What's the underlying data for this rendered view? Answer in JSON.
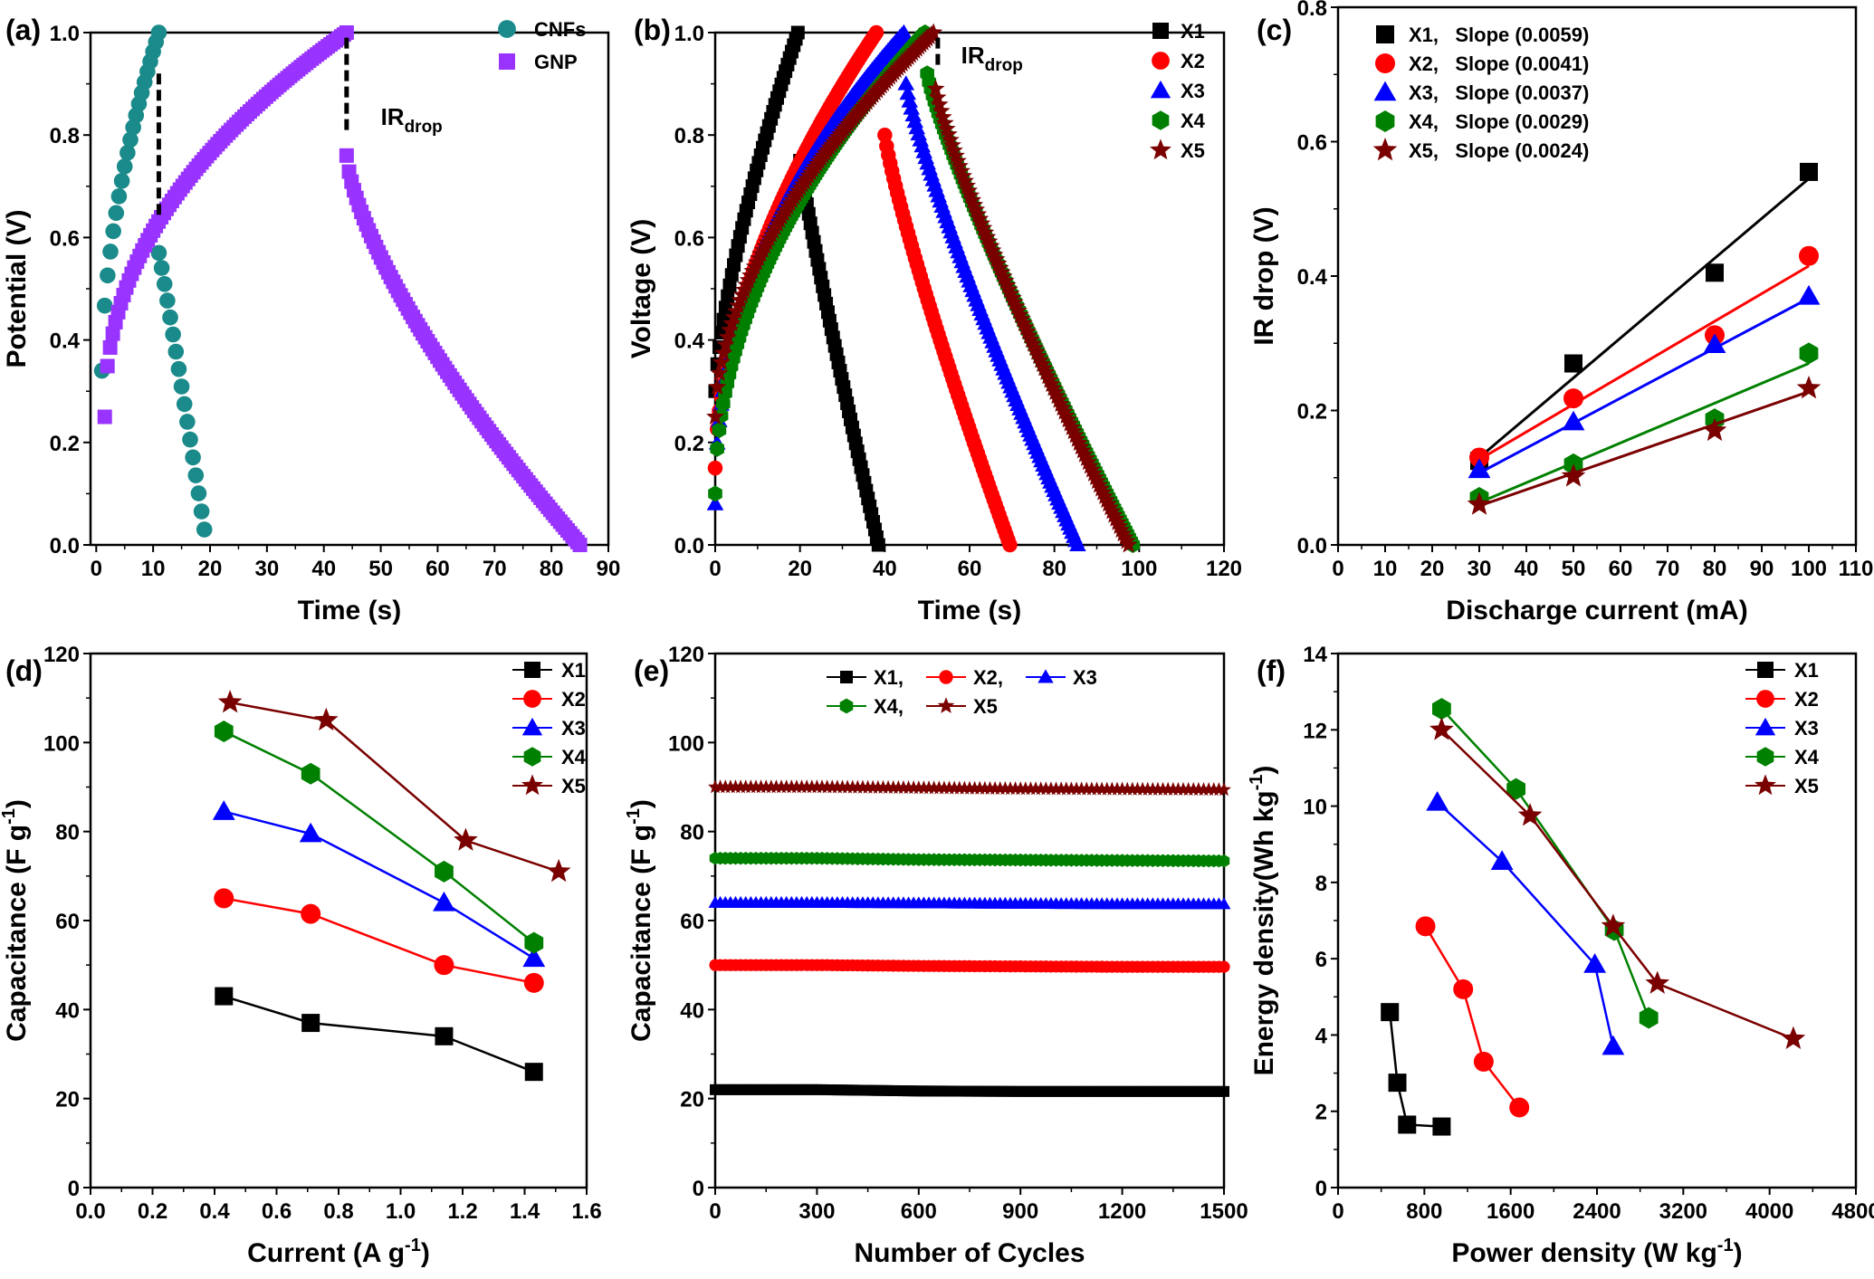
{
  "colors": {
    "teal": "#1a8a8a",
    "purple": "#9933ff",
    "black": "#000000",
    "red": "#ff0000",
    "blue": "#0000ff",
    "green": "#008000",
    "darkred": "#7a0000"
  },
  "chart_data": [
    {
      "id": "a",
      "type": "scatter",
      "panel_label": "(a)",
      "xlabel": "Time (s)",
      "ylabel": "Potential (V)",
      "xlim": [
        -1,
        90
      ],
      "ylim": [
        0,
        1.0
      ],
      "xticks": [
        0,
        10,
        20,
        30,
        40,
        50,
        60,
        70,
        80,
        90
      ],
      "yticks": [
        0.0,
        0.2,
        0.4,
        0.6,
        0.8,
        1.0
      ],
      "xtick_labels": [
        "0",
        "10",
        "20",
        "30",
        "40",
        "50",
        "60",
        "70",
        "80",
        "90"
      ],
      "ytick_labels": [
        "0.0",
        "0.2",
        "0.4",
        "0.6",
        "0.8",
        "1.0"
      ],
      "legend": "top-right",
      "annotations": [
        {
          "text": "IR",
          "sub": "drop"
        }
      ],
      "series": [
        {
          "name": "CNFs",
          "color": "teal",
          "marker": "circle",
          "charge": {
            "x0": 1,
            "x1": 11,
            "y0": 0.34,
            "y1": 1.0,
            "n": 20,
            "curve": 0.55
          },
          "jump": [
            11,
            0.57
          ],
          "discharge": {
            "x0": 11,
            "x1": 19,
            "y0": 0.57,
            "y1": 0.03,
            "n": 16,
            "curve": 1.05
          }
        },
        {
          "name": "GNP",
          "color": "purple",
          "marker": "square",
          "charge": {
            "x0": 1.5,
            "x1": 44,
            "y0": 0.25,
            "y1": 1.0,
            "n": 90,
            "curve": 0.45
          },
          "jump": [
            44,
            0.76
          ],
          "discharge": {
            "x0": 44,
            "x1": 85,
            "y0": 0.76,
            "y1": 0.0,
            "n": 95,
            "curve": 0.7
          }
        }
      ]
    },
    {
      "id": "b",
      "type": "scatter",
      "panel_label": "(b)",
      "xlabel": "Time (s)",
      "ylabel": "Voltage (V)",
      "xlim": [
        0,
        120
      ],
      "ylim": [
        0,
        1.0
      ],
      "xticks": [
        0,
        20,
        40,
        60,
        80,
        100,
        120
      ],
      "yticks": [
        0.0,
        0.2,
        0.4,
        0.6,
        0.8,
        1.0
      ],
      "xtick_labels": [
        "0",
        "20",
        "40",
        "60",
        "80",
        "100",
        "120"
      ],
      "ytick_labels": [
        "0.0",
        "0.2",
        "0.4",
        "0.6",
        "0.8",
        "1.0"
      ],
      "legend": "top-right",
      "annotations": [
        {
          "text": "IR",
          "sub": "drop"
        }
      ],
      "series": [
        {
          "name": "X1",
          "color": "black",
          "marker": "square",
          "charge": {
            "x0": 0,
            "x1": 19.5,
            "y0": 0.3,
            "y1": 1.0,
            "n": 40,
            "curve": 0.7
          },
          "jump": [
            20,
            0.79
          ],
          "discharge": {
            "x0": 20,
            "x1": 38.5,
            "y0": 0.75,
            "y1": 0.0,
            "n": 45,
            "curve": 0.9
          }
        },
        {
          "name": "X2",
          "color": "red",
          "marker": "circle",
          "charge": {
            "x0": 0,
            "x1": 38,
            "y0": 0.15,
            "y1": 1.0,
            "n": 80,
            "curve": 0.55
          },
          "jump": [
            40,
            0.8
          ],
          "discharge": {
            "x0": 40,
            "x1": 69.5,
            "y0": 0.8,
            "y1": 0.0,
            "n": 70,
            "curve": 0.85
          }
        },
        {
          "name": "X3",
          "color": "blue",
          "marker": "triangle",
          "charge": {
            "x0": 0,
            "x1": 44.5,
            "y0": 0.08,
            "y1": 1.0,
            "n": 95,
            "curve": 0.45
          },
          "jump": [
            45,
            0.9
          ],
          "discharge": {
            "x0": 45,
            "x1": 85.5,
            "y0": 0.9,
            "y1": 0.0,
            "n": 95,
            "curve": 0.85
          }
        },
        {
          "name": "X4",
          "color": "green",
          "marker": "hexagon",
          "charge": {
            "x0": 0,
            "x1": 49.5,
            "y0": 0.1,
            "y1": 1.0,
            "n": 105,
            "curve": 0.5
          },
          "jump": [
            50,
            0.92
          ],
          "discharge": {
            "x0": 50,
            "x1": 98.5,
            "y0": 0.92,
            "y1": 0.0,
            "n": 110,
            "curve": 0.85
          }
        },
        {
          "name": "X5",
          "color": "darkred",
          "marker": "star",
          "charge": {
            "x0": 0,
            "x1": 51.5,
            "y0": 0.25,
            "y1": 1.0,
            "n": 105,
            "curve": 0.55
          },
          "jump": [
            52,
            0.89
          ],
          "discharge": {
            "x0": 52,
            "x1": 97.5,
            "y0": 0.89,
            "y1": 0.0,
            "n": 105,
            "curve": 0.85
          }
        }
      ]
    },
    {
      "id": "c",
      "type": "scatter",
      "panel_label": "(c)",
      "xlabel": "Discharge current (mA)",
      "ylabel": "IR drop (V)",
      "xlim": [
        0,
        110
      ],
      "ylim": [
        0,
        0.8
      ],
      "xticks": [
        0,
        10,
        20,
        30,
        40,
        50,
        60,
        70,
        80,
        90,
        100,
        110
      ],
      "yticks": [
        0.0,
        0.2,
        0.4,
        0.6,
        0.8
      ],
      "xtick_labels": [
        "0",
        "10",
        "20",
        "30",
        "40",
        "50",
        "60",
        "70",
        "80",
        "90",
        "100",
        "110"
      ],
      "ytick_labels": [
        "0.0",
        "0.2",
        "0.4",
        "0.6",
        "0.8"
      ],
      "legend": "top-left",
      "series": [
        {
          "name": "X1,   Slope (0.0059)",
          "color": "black",
          "marker": "square",
          "x": [
            30,
            50,
            80,
            100
          ],
          "y": [
            0.125,
            0.27,
            0.405,
            0.555
          ],
          "fit": [
            [
              30,
              0.13
            ],
            [
              100,
              0.545
            ]
          ]
        },
        {
          "name": "X2,   Slope (0.0041)",
          "color": "red",
          "marker": "circle",
          "x": [
            30,
            50,
            80,
            100
          ],
          "y": [
            0.13,
            0.218,
            0.312,
            0.43
          ],
          "fit": [
            [
              30,
              0.127
            ],
            [
              100,
              0.415
            ]
          ]
        },
        {
          "name": "X3,   Slope (0.0037)",
          "color": "blue",
          "marker": "triangle",
          "x": [
            30,
            50,
            80,
            100
          ],
          "y": [
            0.112,
            0.183,
            0.298,
            0.37
          ],
          "fit": [
            [
              30,
              0.107
            ],
            [
              100,
              0.367
            ]
          ]
        },
        {
          "name": "X4,   Slope (0.0029)",
          "color": "green",
          "marker": "hexagon",
          "x": [
            30,
            50,
            80,
            100
          ],
          "y": [
            0.07,
            0.12,
            0.187,
            0.285
          ],
          "fit": [
            [
              30,
              0.063
            ],
            [
              100,
              0.27
            ]
          ]
        },
        {
          "name": "X5,   Slope (0.0024)",
          "color": "darkred",
          "marker": "star",
          "x": [
            30,
            50,
            80,
            100
          ],
          "y": [
            0.06,
            0.102,
            0.17,
            0.233
          ],
          "fit": [
            [
              30,
              0.058
            ],
            [
              100,
              0.228
            ]
          ]
        }
      ]
    },
    {
      "id": "d",
      "type": "line",
      "panel_label": "(d)",
      "xlabel": "Current (A g",
      "xlabel_sup": "-1",
      "xlabel_end": ")",
      "ylabel": "Capacitance (F g",
      "ylabel_sup": "-1",
      "ylabel_end": ")",
      "xlim": [
        0,
        1.6
      ],
      "ylim": [
        0,
        120
      ],
      "xticks": [
        0,
        0.2,
        0.4,
        0.6,
        0.8,
        1.0,
        1.2,
        1.4,
        1.6
      ],
      "yticks": [
        0,
        20,
        40,
        60,
        80,
        100,
        120
      ],
      "xtick_labels": [
        "0.0",
        "0.2",
        "0.4",
        "0.6",
        "0.8",
        "1.0",
        "1.2",
        "1.4",
        "1.6"
      ],
      "ytick_labels": [
        "0",
        "20",
        "40",
        "60",
        "80",
        "100",
        "120"
      ],
      "legend": "top-right",
      "series": [
        {
          "name": "X1",
          "color": "black",
          "marker": "square",
          "x": [
            0.43,
            0.71,
            1.14,
            1.43
          ],
          "y": [
            43,
            37,
            34,
            26
          ]
        },
        {
          "name": "X2",
          "color": "red",
          "marker": "circle",
          "x": [
            0.43,
            0.71,
            1.14,
            1.43
          ],
          "y": [
            65,
            61.5,
            50,
            46
          ]
        },
        {
          "name": "X3",
          "color": "blue",
          "marker": "triangle",
          "x": [
            0.43,
            0.71,
            1.14,
            1.43
          ],
          "y": [
            84.5,
            79.5,
            64,
            51.5
          ]
        },
        {
          "name": "X4",
          "color": "green",
          "marker": "hexagon",
          "x": [
            0.43,
            0.71,
            1.14,
            1.43
          ],
          "y": [
            102.5,
            93,
            71,
            55
          ]
        },
        {
          "name": "X5",
          "color": "darkred",
          "marker": "star",
          "x": [
            0.45,
            0.76,
            1.21,
            1.51
          ],
          "y": [
            109,
            105,
            78,
            71
          ]
        }
      ]
    },
    {
      "id": "e",
      "type": "line",
      "panel_label": "(e)",
      "xlabel": "Number of Cycles",
      "ylabel": "Capacitance (F g",
      "ylabel_sup": "-1",
      "ylabel_end": ")",
      "xlim": [
        0,
        1500
      ],
      "ylim": [
        0,
        120
      ],
      "xticks": [
        0,
        300,
        600,
        900,
        1200,
        1500
      ],
      "yticks": [
        0,
        20,
        40,
        60,
        80,
        100,
        120
      ],
      "xtick_labels": [
        "0",
        "300",
        "600",
        "900",
        "1200",
        "1500"
      ],
      "ytick_labels": [
        "0",
        "20",
        "40",
        "60",
        "80",
        "100",
        "120"
      ],
      "legend": "top-center",
      "series": [
        {
          "name": "X1,",
          "color": "black",
          "marker": "square",
          "x": [
            0,
            300,
            600,
            900,
            1200,
            1500
          ],
          "y": [
            22,
            22,
            21.7,
            21.6,
            21.6,
            21.6
          ],
          "n": 100
        },
        {
          "name": "X2,",
          "color": "red",
          "marker": "circle",
          "x": [
            0,
            300,
            600,
            900,
            1200,
            1500
          ],
          "y": [
            50,
            50,
            49.8,
            49.7,
            49.6,
            49.6
          ],
          "n": 100
        },
        {
          "name": "X3",
          "color": "blue",
          "marker": "triangle",
          "x": [
            0,
            300,
            600,
            900,
            1200,
            1500
          ],
          "y": [
            64,
            64,
            63.9,
            63.8,
            63.7,
            63.7
          ],
          "n": 100
        },
        {
          "name": "X4,",
          "color": "green",
          "marker": "hexagon",
          "x": [
            0,
            300,
            600,
            900,
            1200,
            1500
          ],
          "y": [
            74,
            74,
            73.7,
            73.6,
            73.5,
            73.4
          ],
          "n": 100
        },
        {
          "name": "X5",
          "color": "darkred",
          "marker": "star",
          "x": [
            0,
            300,
            600,
            900,
            1200,
            1500
          ],
          "y": [
            90,
            90,
            89.8,
            89.6,
            89.5,
            89.4
          ],
          "n": 100
        }
      ]
    },
    {
      "id": "f",
      "type": "line",
      "panel_label": "(f)",
      "xlabel": "Power density (W kg",
      "xlabel_sup": "-1",
      "xlabel_end": ")",
      "ylabel": "Energy density(Wh kg",
      "ylabel_sup": "-1",
      "ylabel_end": ")",
      "xlim": [
        0,
        4800
      ],
      "ylim": [
        0,
        14
      ],
      "xticks": [
        0,
        800,
        1600,
        2400,
        3200,
        4000,
        4800
      ],
      "yticks": [
        0,
        2,
        4,
        6,
        8,
        10,
        12,
        14
      ],
      "xtick_labels": [
        "0",
        "800",
        "1600",
        "2400",
        "3200",
        "4000",
        "4800"
      ],
      "ytick_labels": [
        "0",
        "2",
        "4",
        "6",
        "8",
        "10",
        "12",
        "14"
      ],
      "legend": "top-right",
      "series": [
        {
          "name": "X1",
          "color": "black",
          "marker": "square",
          "x": [
            480,
            550,
            640,
            960
          ],
          "y": [
            4.6,
            2.75,
            1.65,
            1.6
          ]
        },
        {
          "name": "X2",
          "color": "red",
          "marker": "circle",
          "x": [
            810,
            1160,
            1350,
            1680
          ],
          "y": [
            6.85,
            5.2,
            3.3,
            2.1
          ]
        },
        {
          "name": "X3",
          "color": "blue",
          "marker": "triangle",
          "x": [
            920,
            1520,
            2380,
            2550
          ],
          "y": [
            10.1,
            8.55,
            5.85,
            3.7
          ]
        },
        {
          "name": "X4",
          "color": "green",
          "marker": "hexagon",
          "x": [
            960,
            1650,
            2560,
            2880
          ],
          "y": [
            12.55,
            10.45,
            6.75,
            4.45
          ]
        },
        {
          "name": "X5",
          "color": "darkred",
          "marker": "star",
          "x": [
            960,
            1780,
            2550,
            2960,
            4220
          ],
          "y": [
            12,
            9.75,
            6.85,
            5.35,
            3.9
          ]
        }
      ]
    }
  ]
}
